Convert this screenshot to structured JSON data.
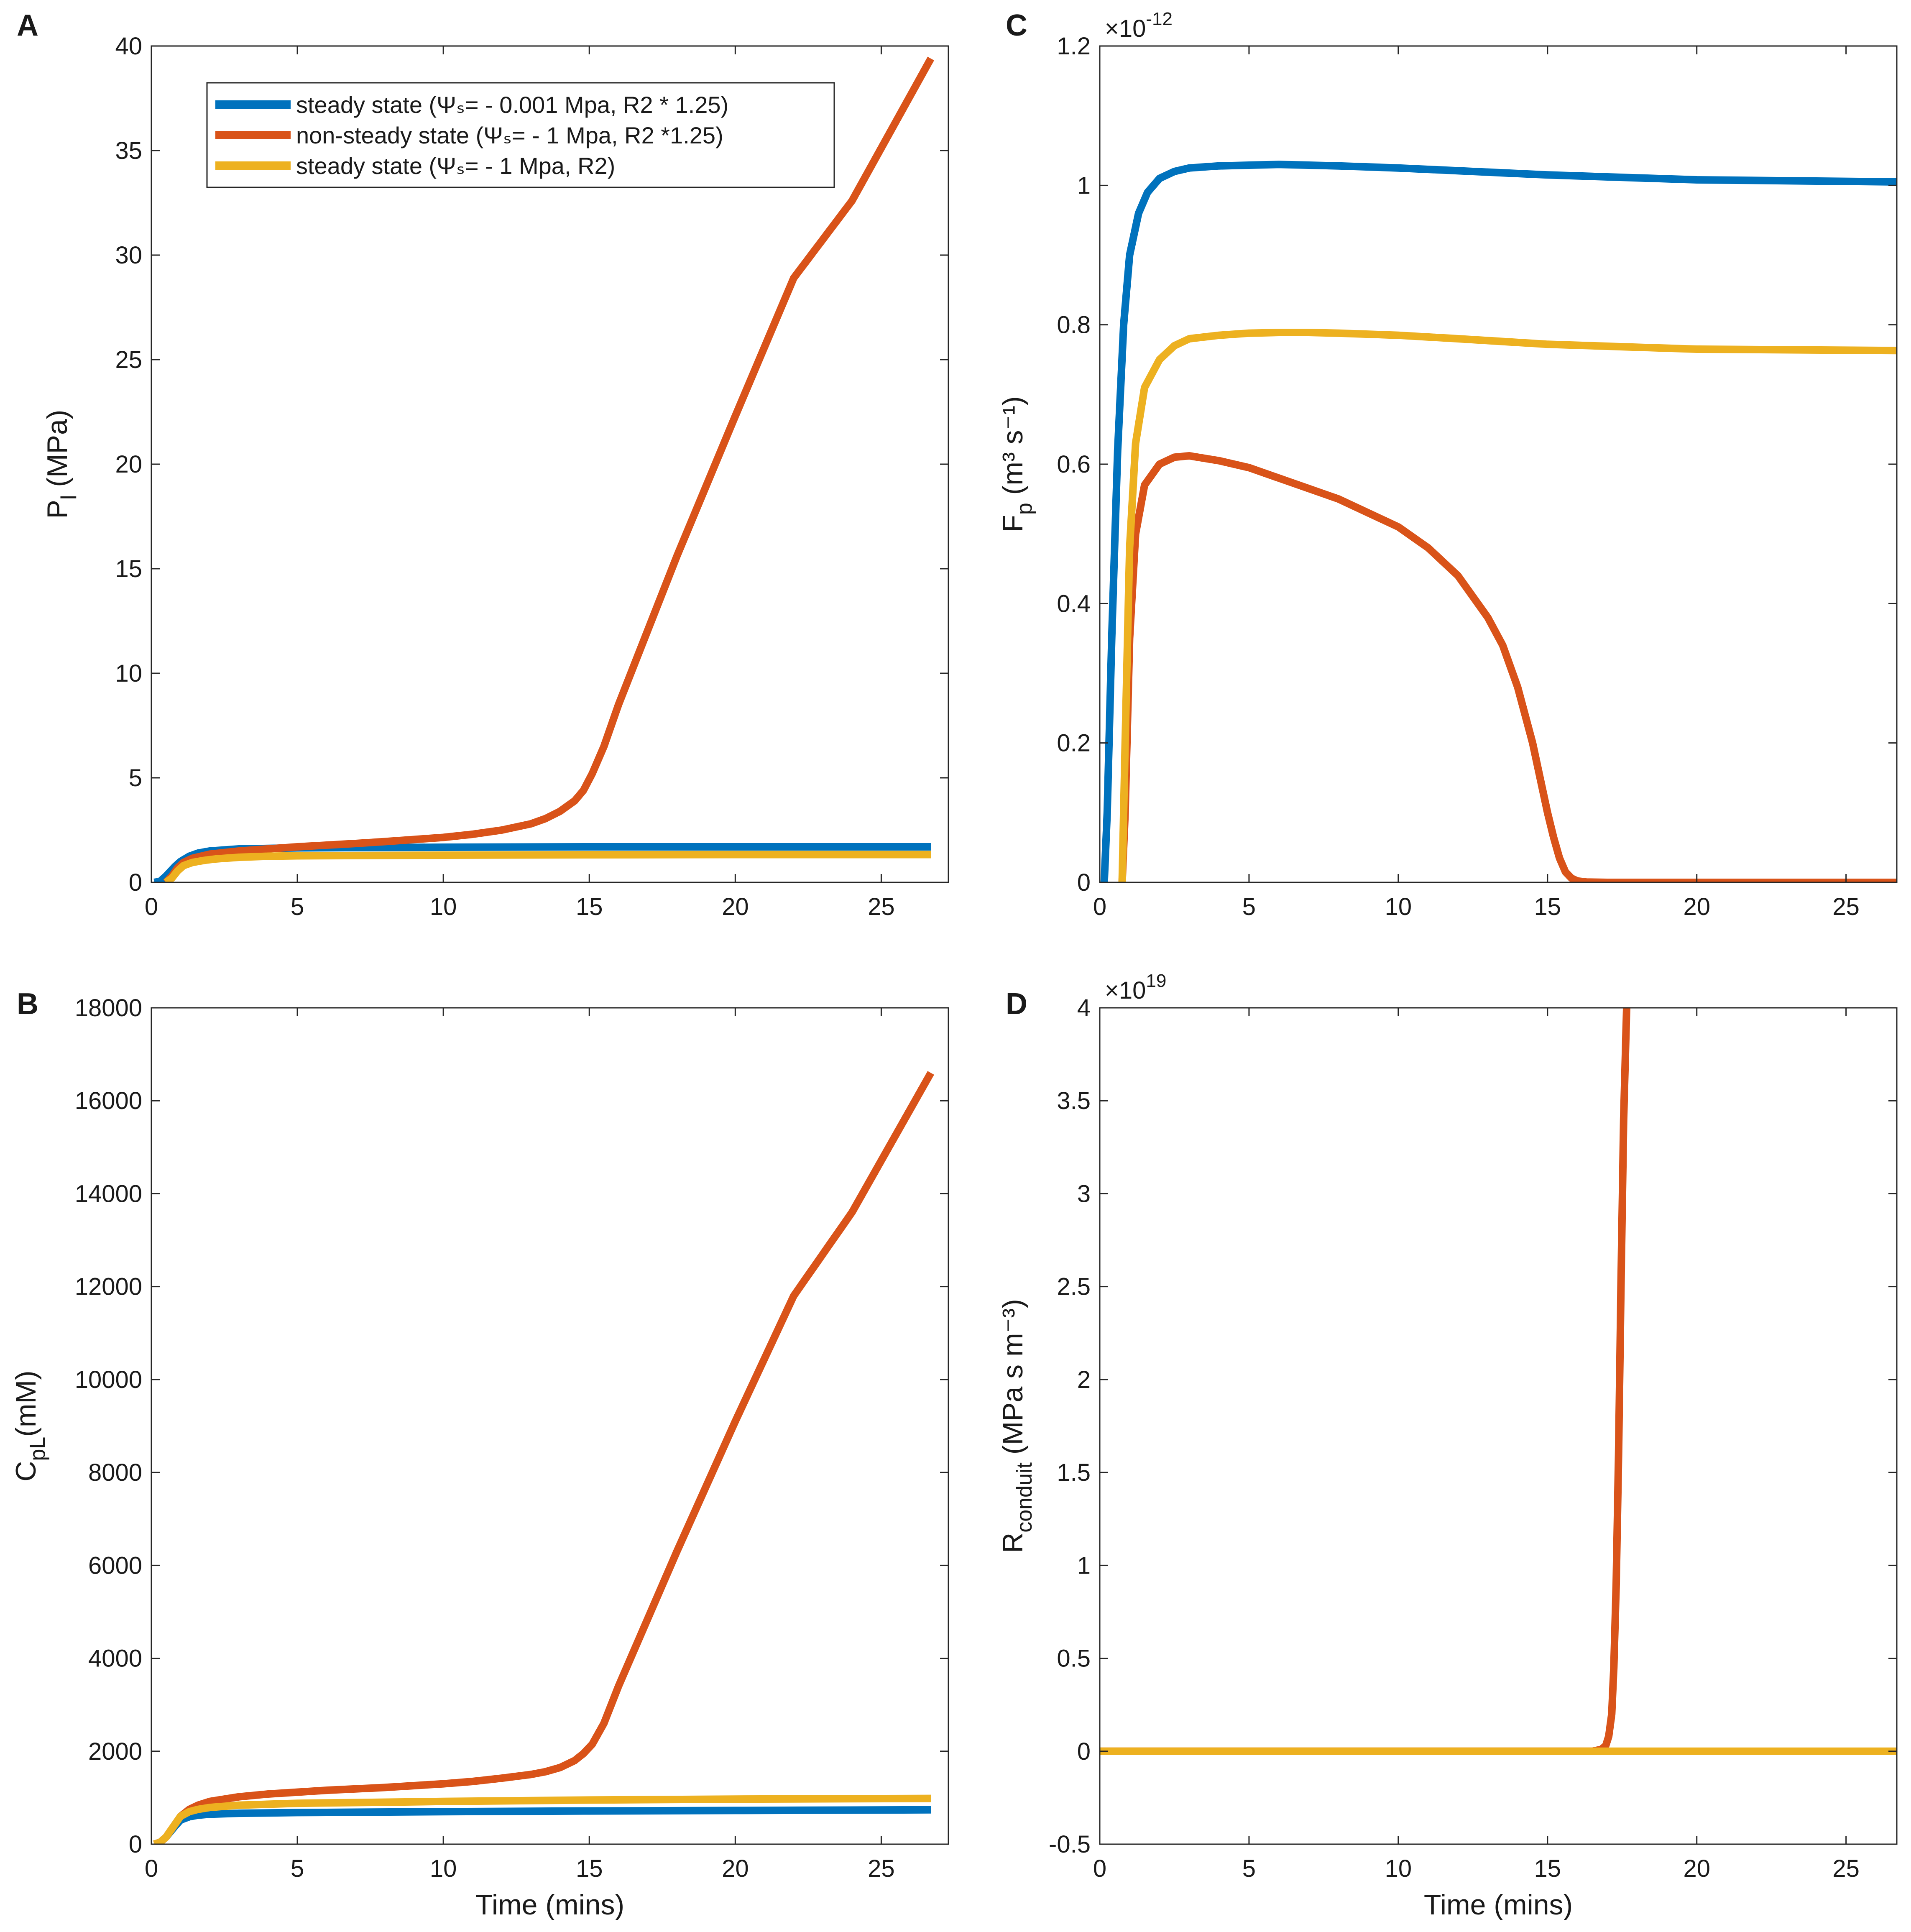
{
  "colors": {
    "blue": "#0072BD",
    "orange": "#D95319",
    "yellow": "#EDB120",
    "axis": "#262626"
  },
  "legend": {
    "entries": [
      {
        "series": "blue",
        "label": "steady state (Ψₛ= - 0.001 Mpa, R2 * 1.25)"
      },
      {
        "series": "orange",
        "label": "non-steady state (Ψₛ= - 1 Mpa, R2 *1.25)"
      },
      {
        "series": "yellow",
        "label": "steady state (Ψₛ= - 1 Mpa, R2)"
      }
    ]
  },
  "chart_data": [
    {
      "panel": "A",
      "type": "line",
      "xlim": [
        0,
        27.3
      ],
      "ylim": [
        0,
        40
      ],
      "xticks": [
        0,
        5,
        10,
        15,
        20,
        25
      ],
      "yticks": [
        0,
        5,
        10,
        15,
        20,
        25,
        30,
        35,
        40
      ],
      "xlabel": "",
      "ylabel_main": "P",
      "ylabel_sub": "l",
      "ylabel_rest": " (MPa)",
      "exponent": "",
      "series": [
        {
          "name": "steady state (Ψs= - 0.001 Mpa, R2 * 1.25)",
          "color": "blue",
          "x": [
            0.1,
            0.3,
            0.5,
            0.8,
            1.0,
            1.3,
            1.6,
            2.0,
            2.5,
            3,
            5,
            10,
            15,
            20,
            26.7
          ],
          "y": [
            0,
            0.05,
            0.3,
            0.75,
            1.0,
            1.25,
            1.4,
            1.5,
            1.55,
            1.6,
            1.65,
            1.68,
            1.7,
            1.7,
            1.7
          ]
        },
        {
          "name": "non-steady state (Ψs= - 1 Mpa, R2 *1.25)",
          "color": "orange",
          "x": [
            0.5,
            0.7,
            0.9,
            1.1,
            1.4,
            2,
            3,
            4,
            5,
            6,
            7,
            8,
            9,
            10,
            11,
            12,
            13,
            13.5,
            14,
            14.5,
            14.8,
            15.1,
            15.5,
            16,
            18,
            20,
            22,
            24,
            26.7
          ],
          "y": [
            0,
            0.3,
            0.7,
            0.95,
            1.15,
            1.35,
            1.5,
            1.6,
            1.7,
            1.78,
            1.86,
            1.95,
            2.05,
            2.15,
            2.3,
            2.5,
            2.8,
            3.05,
            3.4,
            3.9,
            4.4,
            5.2,
            6.5,
            8.5,
            15.6,
            22.3,
            28.9,
            32.6,
            39.4
          ]
        },
        {
          "name": "steady state (Ψs= - 1 Mpa, R2)",
          "color": "yellow",
          "x": [
            0.5,
            0.7,
            0.9,
            1.1,
            1.4,
            1.8,
            2.2,
            3,
            4,
            5,
            10,
            15,
            20,
            26.7
          ],
          "y": [
            0,
            0.2,
            0.55,
            0.8,
            0.95,
            1.05,
            1.12,
            1.2,
            1.25,
            1.27,
            1.3,
            1.32,
            1.33,
            1.33
          ]
        }
      ]
    },
    {
      "panel": "C",
      "type": "line",
      "xlim": [
        0,
        26.7
      ],
      "ylim": [
        0,
        1.2
      ],
      "xticks": [
        0,
        5,
        10,
        15,
        20,
        25
      ],
      "yticks": [
        0,
        0.2,
        0.4,
        0.6,
        0.8,
        1,
        1.2
      ],
      "xlabel": "",
      "ylabel_main": "F",
      "ylabel_sub": "p",
      "ylabel_rest": " (m³ s⁻¹)",
      "exponent": "×10",
      "exponent_power": "-12",
      "series": [
        {
          "name": "steady state (Ψs= - 0.001 Mpa, R2 * 1.25)",
          "color": "blue",
          "x": [
            0.15,
            0.25,
            0.4,
            0.6,
            0.8,
            1.0,
            1.3,
            1.6,
            2.0,
            2.5,
            3,
            4,
            5,
            6,
            8,
            10,
            15,
            20,
            26.7
          ],
          "y": [
            0,
            0.1,
            0.35,
            0.62,
            0.8,
            0.9,
            0.96,
            0.99,
            1.01,
            1.02,
            1.025,
            1.028,
            1.029,
            1.03,
            1.028,
            1.025,
            1.015,
            1.008,
            1.005
          ]
        },
        {
          "name": "non-steady state (Ψs= - 1 Mpa, R2 *1.25)",
          "color": "orange",
          "x": [
            0.75,
            0.85,
            1.0,
            1.2,
            1.5,
            2,
            2.5,
            3,
            4,
            5,
            6,
            7,
            8,
            9,
            10,
            11,
            12,
            13,
            13.5,
            14,
            14.5,
            14.8,
            15.0,
            15.2,
            15.4,
            15.6,
            15.8,
            16.0,
            16.3,
            17,
            20,
            26.7
          ],
          "y": [
            0,
            0.1,
            0.35,
            0.5,
            0.57,
            0.6,
            0.61,
            0.612,
            0.605,
            0.595,
            0.58,
            0.565,
            0.55,
            0.53,
            0.51,
            0.48,
            0.44,
            0.38,
            0.34,
            0.28,
            0.2,
            0.14,
            0.1,
            0.065,
            0.035,
            0.015,
            0.006,
            0.002,
            0.0005,
            0,
            0,
            0
          ]
        },
        {
          "name": "steady state (Ψs= - 1 Mpa, R2)",
          "color": "yellow",
          "x": [
            0.75,
            0.85,
            1.0,
            1.2,
            1.5,
            2,
            2.5,
            3,
            4,
            5,
            6,
            7,
            8,
            10,
            12,
            15,
            20,
            26.7
          ],
          "y": [
            0,
            0.2,
            0.48,
            0.63,
            0.71,
            0.75,
            0.77,
            0.78,
            0.785,
            0.788,
            0.789,
            0.789,
            0.788,
            0.785,
            0.78,
            0.772,
            0.765,
            0.763
          ]
        }
      ]
    },
    {
      "panel": "B",
      "type": "line",
      "xlim": [
        0,
        27.3
      ],
      "ylim": [
        0,
        18000
      ],
      "xticks": [
        0,
        5,
        10,
        15,
        20,
        25
      ],
      "yticks": [
        0,
        2000,
        4000,
        6000,
        8000,
        10000,
        12000,
        14000,
        16000,
        18000
      ],
      "xlabel": "Time (mins)",
      "ylabel_main": "C",
      "ylabel_sub": "pL",
      "ylabel_rest": "(mM)",
      "exponent": "",
      "series": [
        {
          "name": "steady state (Ψs= - 0.001 Mpa, R2 * 1.25)",
          "color": "blue",
          "x": [
            0.1,
            0.3,
            0.5,
            0.8,
            1.0,
            1.3,
            1.6,
            2,
            3,
            5,
            10,
            15,
            20,
            26.7
          ],
          "y": [
            0,
            40,
            150,
            380,
            520,
            590,
            625,
            645,
            665,
            680,
            700,
            715,
            725,
            740
          ]
        },
        {
          "name": "non-steady state (Ψs= - 1 Mpa, R2 *1.25)",
          "color": "orange",
          "x": [
            0.1,
            0.3,
            0.5,
            0.8,
            1.0,
            1.3,
            1.6,
            2,
            3,
            4,
            5,
            6,
            7,
            8,
            9,
            10,
            11,
            12,
            13,
            13.5,
            14,
            14.5,
            14.8,
            15.1,
            15.5,
            16,
            18,
            20,
            22,
            24,
            26.7
          ],
          "y": [
            0,
            40,
            150,
            420,
            600,
            750,
            840,
            920,
            1020,
            1080,
            1120,
            1160,
            1190,
            1220,
            1260,
            1300,
            1350,
            1420,
            1500,
            1560,
            1650,
            1800,
            1950,
            2150,
            2600,
            3400,
            6300,
            9100,
            11800,
            13600,
            16600
          ]
        },
        {
          "name": "steady state (Ψs= - 1 Mpa, R2)",
          "color": "yellow",
          "x": [
            0.1,
            0.3,
            0.5,
            0.8,
            1.0,
            1.3,
            1.6,
            2,
            3,
            5,
            10,
            15,
            20,
            26.7
          ],
          "y": [
            0,
            40,
            150,
            420,
            600,
            700,
            750,
            790,
            840,
            880,
            920,
            950,
            970,
            985
          ]
        }
      ]
    },
    {
      "panel": "D",
      "type": "line",
      "xlim": [
        0,
        26.7
      ],
      "ylim": [
        -0.5,
        4
      ],
      "xticks": [
        0,
        5,
        10,
        15,
        20,
        25
      ],
      "yticks": [
        -0.5,
        0,
        0.5,
        1,
        1.5,
        2,
        2.5,
        3,
        3.5,
        4
      ],
      "xlabel": "Time (mins)",
      "ylabel_main": "R",
      "ylabel_sub": "conduit",
      "ylabel_rest": " (MPa s m⁻³)",
      "exponent": "×10",
      "exponent_power": "19",
      "series": [
        {
          "name": "non-steady state (Ψs= - 1 Mpa, R2 *1.25)",
          "color": "orange",
          "x": [
            0,
            16.5,
            16.8,
            16.95,
            17.05,
            17.15,
            17.22,
            17.3,
            17.38,
            17.46,
            17.55,
            17.65
          ],
          "y": [
            0,
            0,
            0.01,
            0.03,
            0.08,
            0.2,
            0.45,
            0.9,
            1.6,
            2.5,
            3.4,
            4.0
          ]
        },
        {
          "name": "steady state (Ψs= - 1 Mpa, R2)",
          "color": "yellow",
          "x": [
            0,
            26.7
          ],
          "y": [
            0,
            0
          ]
        }
      ]
    }
  ]
}
